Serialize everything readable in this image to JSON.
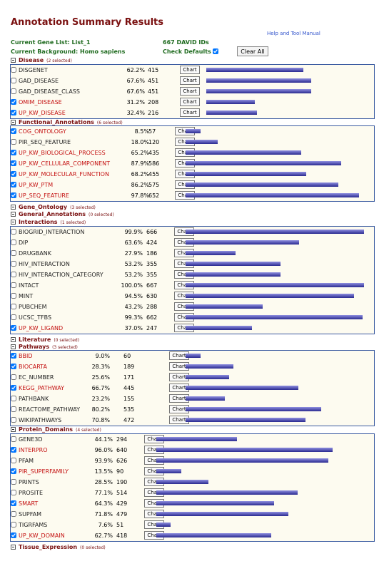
{
  "header": {
    "title": "Annotation Summary Results",
    "help_link": "Help and Tool Manual",
    "gene_list_label": "Current Gene List: List_1",
    "ids_label": "667 DAVID IDs",
    "background_label": "Current Background: Homo sapiens",
    "check_defaults_label": "Check Defaults",
    "check_defaults_checked": true,
    "clear_all_label": "Clear All",
    "chart_label": "Chart"
  },
  "categories": [
    {
      "name": "Disease",
      "selected": "(2 selected)",
      "expanded": true,
      "rows": [
        {
          "term": "DISGENET",
          "pct": "62.2%",
          "count": "415",
          "checked": false,
          "fraction": 0.622
        },
        {
          "term": "GAD_DISEASE",
          "pct": "67.6%",
          "count": "451",
          "checked": false,
          "fraction": 0.676
        },
        {
          "term": "GAD_DISEASE_CLASS",
          "pct": "67.6%",
          "count": "451",
          "checked": false,
          "fraction": 0.676
        },
        {
          "term": "OMIM_DISEASE",
          "pct": "31.2%",
          "count": "208",
          "checked": true,
          "fraction": 0.312
        },
        {
          "term": "UP_KW_DISEASE",
          "pct": "32.4%",
          "count": "216",
          "checked": true,
          "fraction": 0.324
        }
      ]
    },
    {
      "name": "Functional_Annotations",
      "selected": "(6 selected)",
      "expanded": true,
      "rows": [
        {
          "term": "COG_ONTOLOGY",
          "pct": "8.5%",
          "count": "57",
          "checked": true,
          "fraction": 0.085
        },
        {
          "term": "PIR_SEQ_FEATURE",
          "pct": "18.0%",
          "count": "120",
          "checked": false,
          "fraction": 0.18
        },
        {
          "term": "UP_KW_BIOLOGICAL_PROCESS",
          "pct": "65.2%",
          "count": "435",
          "checked": true,
          "fraction": 0.652
        },
        {
          "term": "UP_KW_CELLULAR_COMPONENT",
          "pct": "87.9%",
          "count": "586",
          "checked": true,
          "fraction": 0.879
        },
        {
          "term": "UP_KW_MOLECULAR_FUNCTION",
          "pct": "68.2%",
          "count": "455",
          "checked": true,
          "fraction": 0.682
        },
        {
          "term": "UP_KW_PTM",
          "pct": "86.2%",
          "count": "575",
          "checked": true,
          "fraction": 0.862
        },
        {
          "term": "UP_SEQ_FEATURE",
          "pct": "97.8%",
          "count": "652",
          "checked": true,
          "fraction": 0.978
        }
      ]
    },
    {
      "name": "Gene_Ontology",
      "selected": "(3 selected)",
      "expanded": false,
      "rows": []
    },
    {
      "name": "General_Annotations",
      "selected": "(0 selected)",
      "expanded": false,
      "rows": []
    },
    {
      "name": "Interactions",
      "selected": "(1 selected)",
      "expanded": true,
      "rows": [
        {
          "term": "BIOGRID_INTERACTION",
          "pct": "99.9%",
          "count": "666",
          "checked": false,
          "fraction": 0.999
        },
        {
          "term": "DIP",
          "pct": "63.6%",
          "count": "424",
          "checked": false,
          "fraction": 0.636
        },
        {
          "term": "DRUGBANK",
          "pct": "27.9%",
          "count": "186",
          "checked": false,
          "fraction": 0.279
        },
        {
          "term": "HIV_INTERACTION",
          "pct": "53.2%",
          "count": "355",
          "checked": false,
          "fraction": 0.532
        },
        {
          "term": "HIV_INTERACTION_CATEGORY",
          "pct": "53.2%",
          "count": "355",
          "checked": false,
          "fraction": 0.532
        },
        {
          "term": "INTACT",
          "pct": "100.0%",
          "count": "667",
          "checked": false,
          "fraction": 1.0
        },
        {
          "term": "MINT",
          "pct": "94.5%",
          "count": "630",
          "checked": false,
          "fraction": 0.945
        },
        {
          "term": "PUBCHEM",
          "pct": "43.2%",
          "count": "288",
          "checked": false,
          "fraction": 0.432
        },
        {
          "term": "UCSC_TFBS",
          "pct": "99.3%",
          "count": "662",
          "checked": false,
          "fraction": 0.993
        },
        {
          "term": "UP_KW_LIGAND",
          "pct": "37.0%",
          "count": "247",
          "checked": true,
          "fraction": 0.37
        }
      ]
    },
    {
      "name": "Literature",
      "selected": "(0 selected)",
      "expanded": false,
      "rows": []
    },
    {
      "name": "Pathways",
      "selected": "(3 selected)",
      "expanded": true,
      "rows": [
        {
          "term": "BBID",
          "pct": "9.0%",
          "count": "60",
          "checked": true,
          "fraction": 0.09
        },
        {
          "term": "BIOCARTA",
          "pct": "28.3%",
          "count": "189",
          "checked": true,
          "fraction": 0.283
        },
        {
          "term": "EC_NUMBER",
          "pct": "25.6%",
          "count": "171",
          "checked": false,
          "fraction": 0.256
        },
        {
          "term": "KEGG_PATHWAY",
          "pct": "66.7%",
          "count": "445",
          "checked": true,
          "fraction": 0.667
        },
        {
          "term": "PATHBANK",
          "pct": "23.2%",
          "count": "155",
          "checked": false,
          "fraction": 0.232
        },
        {
          "term": "REACTOME_PATHWAY",
          "pct": "80.2%",
          "count": "535",
          "checked": false,
          "fraction": 0.802
        },
        {
          "term": "WIKIPATHWAYS",
          "pct": "70.8%",
          "count": "472",
          "checked": false,
          "fraction": 0.708
        }
      ]
    },
    {
      "name": "Protein_Domains",
      "selected": "(4 selected)",
      "expanded": true,
      "rows": [
        {
          "term": "GENE3D",
          "pct": "44.1%",
          "count": "294",
          "checked": false,
          "fraction": 0.441
        },
        {
          "term": "INTERPRO",
          "pct": "96.0%",
          "count": "640",
          "checked": true,
          "fraction": 0.96
        },
        {
          "term": "PFAM",
          "pct": "93.9%",
          "count": "626",
          "checked": false,
          "fraction": 0.939
        },
        {
          "term": "PIR_SUPERFAMILY",
          "pct": "13.5%",
          "count": "90",
          "checked": true,
          "fraction": 0.135
        },
        {
          "term": "PRINTS",
          "pct": "28.5%",
          "count": "190",
          "checked": false,
          "fraction": 0.285
        },
        {
          "term": "PROSITE",
          "pct": "77.1%",
          "count": "514",
          "checked": false,
          "fraction": 0.771
        },
        {
          "term": "SMART",
          "pct": "64.3%",
          "count": "429",
          "checked": true,
          "fraction": 0.643
        },
        {
          "term": "SUPFAM",
          "pct": "71.8%",
          "count": "479",
          "checked": false,
          "fraction": 0.718
        },
        {
          "term": "TIGRFAMS",
          "pct": "7.6%",
          "count": "51",
          "checked": false,
          "fraction": 0.076
        },
        {
          "term": "UP_KW_DOMAIN",
          "pct": "62.7%",
          "count": "418",
          "checked": true,
          "fraction": 0.627
        }
      ]
    },
    {
      "name": "Tissue_Expression",
      "selected": "(0 selected)",
      "expanded": false,
      "rows": []
    }
  ]
}
